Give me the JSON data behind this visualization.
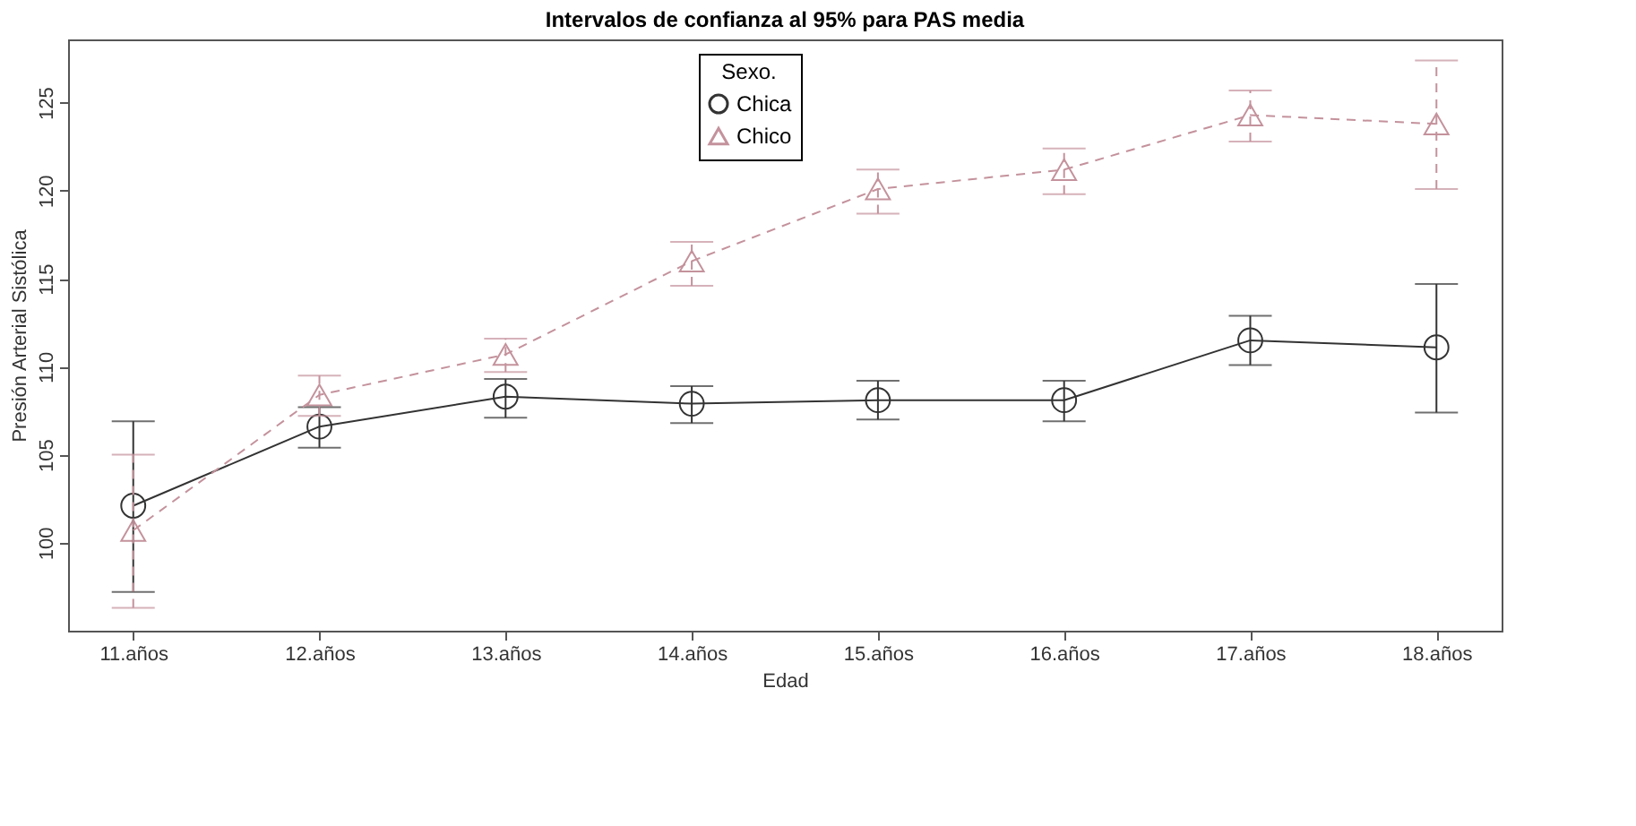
{
  "chart_data": {
    "type": "line",
    "title": "Intervalos de confianza al 95% para PAS media",
    "xlabel": "Edad",
    "ylabel": "Presión Arterial Sistólica",
    "legend_title": "Sexo.",
    "legend": "top",
    "grid": false,
    "categories": [
      "11.años",
      "12.años",
      "13.años",
      "14.años",
      "15.años",
      "16.años",
      "17.años",
      "18.años"
    ],
    "ylim": [
      95,
      128.6
    ],
    "yticks": [
      100,
      105,
      110,
      115,
      120,
      125
    ],
    "series": [
      {
        "name": "Chica",
        "color": "#333333",
        "marker": "circle",
        "line_style": "solid",
        "values": [
          102.1,
          106.6,
          108.3,
          107.9,
          108.1,
          108.1,
          111.5,
          111.1
        ],
        "errors": [
          [
            97.2,
            106.9
          ],
          [
            105.4,
            107.7
          ],
          [
            107.1,
            109.3
          ],
          [
            106.8,
            108.9
          ],
          [
            107.0,
            109.2
          ],
          [
            106.9,
            109.2
          ],
          [
            110.1,
            112.9
          ],
          [
            107.4,
            114.7
          ]
        ]
      },
      {
        "name": "Chico",
        "color": "#c4929c",
        "marker": "triangle",
        "line_style": "dashed",
        "values": [
          100.7,
          108.4,
          110.7,
          116.0,
          120.1,
          121.2,
          124.3,
          123.8
        ],
        "errors": [
          [
            96.3,
            105.0
          ],
          [
            107.2,
            109.5
          ],
          [
            109.7,
            111.6
          ],
          [
            114.6,
            117.1
          ],
          [
            118.7,
            121.2
          ],
          [
            119.8,
            122.4
          ],
          [
            122.8,
            125.7
          ],
          [
            120.1,
            127.4
          ]
        ]
      }
    ]
  }
}
